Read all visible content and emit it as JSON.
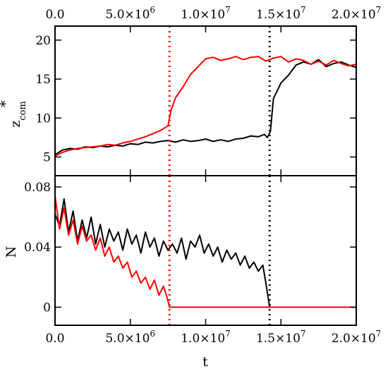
{
  "chart_data": [
    {
      "panel": "top",
      "type": "line",
      "ylabel": "z",
      "ylabel_superscript": "*",
      "ylabel_subscript": "com",
      "xlim": [
        0,
        20000000
      ],
      "ylim": [
        2.6,
        21.8
      ],
      "x_ticks": [
        0,
        5000000,
        10000000,
        15000000,
        20000000
      ],
      "x_tick_labels_top": [
        "0.0",
        "5.0×10",
        "1.0×10",
        "1.5×10",
        "2.0×10"
      ],
      "x_tick_exponents": [
        "",
        "6",
        "7",
        "7",
        "7"
      ],
      "y_ticks": [
        5,
        10,
        15,
        20
      ],
      "y_tick_labels": [
        "5",
        "10",
        "15",
        "20"
      ],
      "vlines": [
        {
          "x": 7600000,
          "color": "#ff0000",
          "style": "dotted"
        },
        {
          "x": 14250000,
          "color": "#000000",
          "style": "dotted"
        }
      ],
      "series": [
        {
          "color": "#000000",
          "x": [
            0,
            500000,
            1000000,
            1500000,
            2000000,
            2500000,
            3000000,
            3500000,
            4000000,
            4500000,
            5000000,
            5500000,
            6000000,
            6500000,
            7000000,
            7500000,
            8000000,
            8500000,
            9000000,
            9500000,
            10000000,
            10500000,
            11000000,
            11500000,
            12000000,
            12500000,
            13000000,
            13500000,
            13900000,
            14100000,
            14300000,
            14500000,
            15000000,
            15500000,
            16000000,
            16500000,
            17000000,
            17500000,
            18000000,
            18500000,
            19000000,
            19500000,
            20000000
          ],
          "y": [
            5.3,
            5.9,
            6.1,
            6.0,
            6.3,
            6.2,
            6.4,
            6.3,
            6.5,
            6.4,
            6.7,
            6.6,
            6.9,
            6.8,
            7.0,
            7.1,
            6.9,
            7.2,
            7.0,
            7.1,
            7.3,
            7.0,
            7.2,
            7.0,
            7.3,
            7.4,
            7.7,
            7.6,
            7.9,
            7.5,
            8.3,
            12.5,
            14.5,
            15.5,
            16.8,
            17.2,
            16.9,
            17.5,
            16.6,
            17.0,
            17.2,
            16.8,
            16.5
          ]
        },
        {
          "color": "#ff0000",
          "x": [
            0,
            500000,
            1000000,
            1500000,
            2000000,
            2500000,
            3000000,
            3500000,
            4000000,
            4500000,
            5000000,
            5500000,
            6000000,
            6500000,
            7000000,
            7500000,
            7700000,
            8000000,
            8500000,
            9000000,
            9500000,
            10000000,
            10500000,
            11000000,
            11500000,
            12000000,
            12500000,
            13000000,
            13500000,
            14000000,
            14500000,
            15000000,
            15500000,
            16000000,
            16500000,
            17000000,
            17500000,
            18000000,
            18500000,
            19000000,
            19500000,
            20000000
          ],
          "y": [
            5.1,
            5.6,
            5.9,
            6.1,
            6.2,
            6.3,
            6.4,
            6.6,
            6.5,
            6.8,
            7.0,
            7.3,
            7.6,
            8.0,
            8.4,
            9.0,
            11.0,
            12.6,
            14.0,
            15.6,
            16.6,
            17.6,
            17.8,
            17.4,
            17.6,
            17.9,
            17.5,
            17.8,
            17.9,
            17.3,
            17.7,
            17.9,
            17.2,
            17.6,
            17.4,
            16.9,
            17.3,
            16.8,
            17.4,
            17.0,
            16.7,
            16.9
          ]
        }
      ]
    },
    {
      "panel": "bottom",
      "type": "line",
      "xlabel": "t",
      "ylabel": "N",
      "xlim": [
        0,
        20000000
      ],
      "ylim": [
        -0.012,
        0.0875
      ],
      "x_ticks": [
        0,
        5000000,
        10000000,
        15000000,
        20000000
      ],
      "x_tick_labels": [
        "0.0",
        "5.0×10",
        "1.0×10",
        "1.5×10",
        "2.0×10"
      ],
      "x_tick_exponents": [
        "",
        "6",
        "7",
        "7",
        "7"
      ],
      "y_ticks": [
        0,
        0.04,
        0.08
      ],
      "y_tick_labels": [
        "0",
        "0.04",
        "0.08"
      ],
      "vlines": [
        {
          "x": 7600000,
          "color": "#ff0000",
          "style": "dotted"
        },
        {
          "x": 14250000,
          "color": "#000000",
          "style": "dotted"
        }
      ],
      "series": [
        {
          "color": "#000000",
          "x": [
            0,
            300000,
            600000,
            900000,
            1200000,
            1500000,
            1800000,
            2100000,
            2400000,
            2700000,
            3000000,
            3300000,
            3600000,
            3900000,
            4200000,
            4500000,
            4800000,
            5100000,
            5400000,
            5700000,
            6000000,
            6300000,
            6600000,
            6900000,
            7200000,
            7500000,
            7800000,
            8100000,
            8400000,
            8700000,
            9000000,
            9300000,
            9600000,
            9900000,
            10200000,
            10500000,
            10800000,
            11100000,
            11400000,
            11700000,
            12000000,
            12300000,
            12600000,
            12900000,
            13200000,
            13500000,
            13800000,
            14000000,
            14250000
          ],
          "y": [
            0.062,
            0.054,
            0.072,
            0.05,
            0.064,
            0.044,
            0.058,
            0.046,
            0.06,
            0.042,
            0.055,
            0.04,
            0.052,
            0.044,
            0.05,
            0.038,
            0.052,
            0.042,
            0.048,
            0.036,
            0.05,
            0.04,
            0.046,
            0.034,
            0.044,
            0.038,
            0.042,
            0.036,
            0.046,
            0.032,
            0.044,
            0.04,
            0.048,
            0.036,
            0.042,
            0.034,
            0.04,
            0.03,
            0.038,
            0.032,
            0.036,
            0.028,
            0.034,
            0.026,
            0.03,
            0.024,
            0.028,
            0.016,
            0.0
          ]
        },
        {
          "color": "#ff0000",
          "x": [
            0,
            300000,
            600000,
            900000,
            1200000,
            1500000,
            1800000,
            2100000,
            2400000,
            2700000,
            3000000,
            3300000,
            3600000,
            3900000,
            4200000,
            4500000,
            4800000,
            5100000,
            5400000,
            5700000,
            6000000,
            6300000,
            6600000,
            6900000,
            7200000,
            7450000,
            7600000,
            20000000
          ],
          "y": [
            0.074,
            0.052,
            0.066,
            0.048,
            0.058,
            0.042,
            0.054,
            0.044,
            0.048,
            0.038,
            0.046,
            0.034,
            0.04,
            0.03,
            0.034,
            0.026,
            0.03,
            0.02,
            0.024,
            0.016,
            0.02,
            0.012,
            0.018,
            0.008,
            0.014,
            0.006,
            0.0,
            0.0
          ]
        }
      ]
    }
  ]
}
